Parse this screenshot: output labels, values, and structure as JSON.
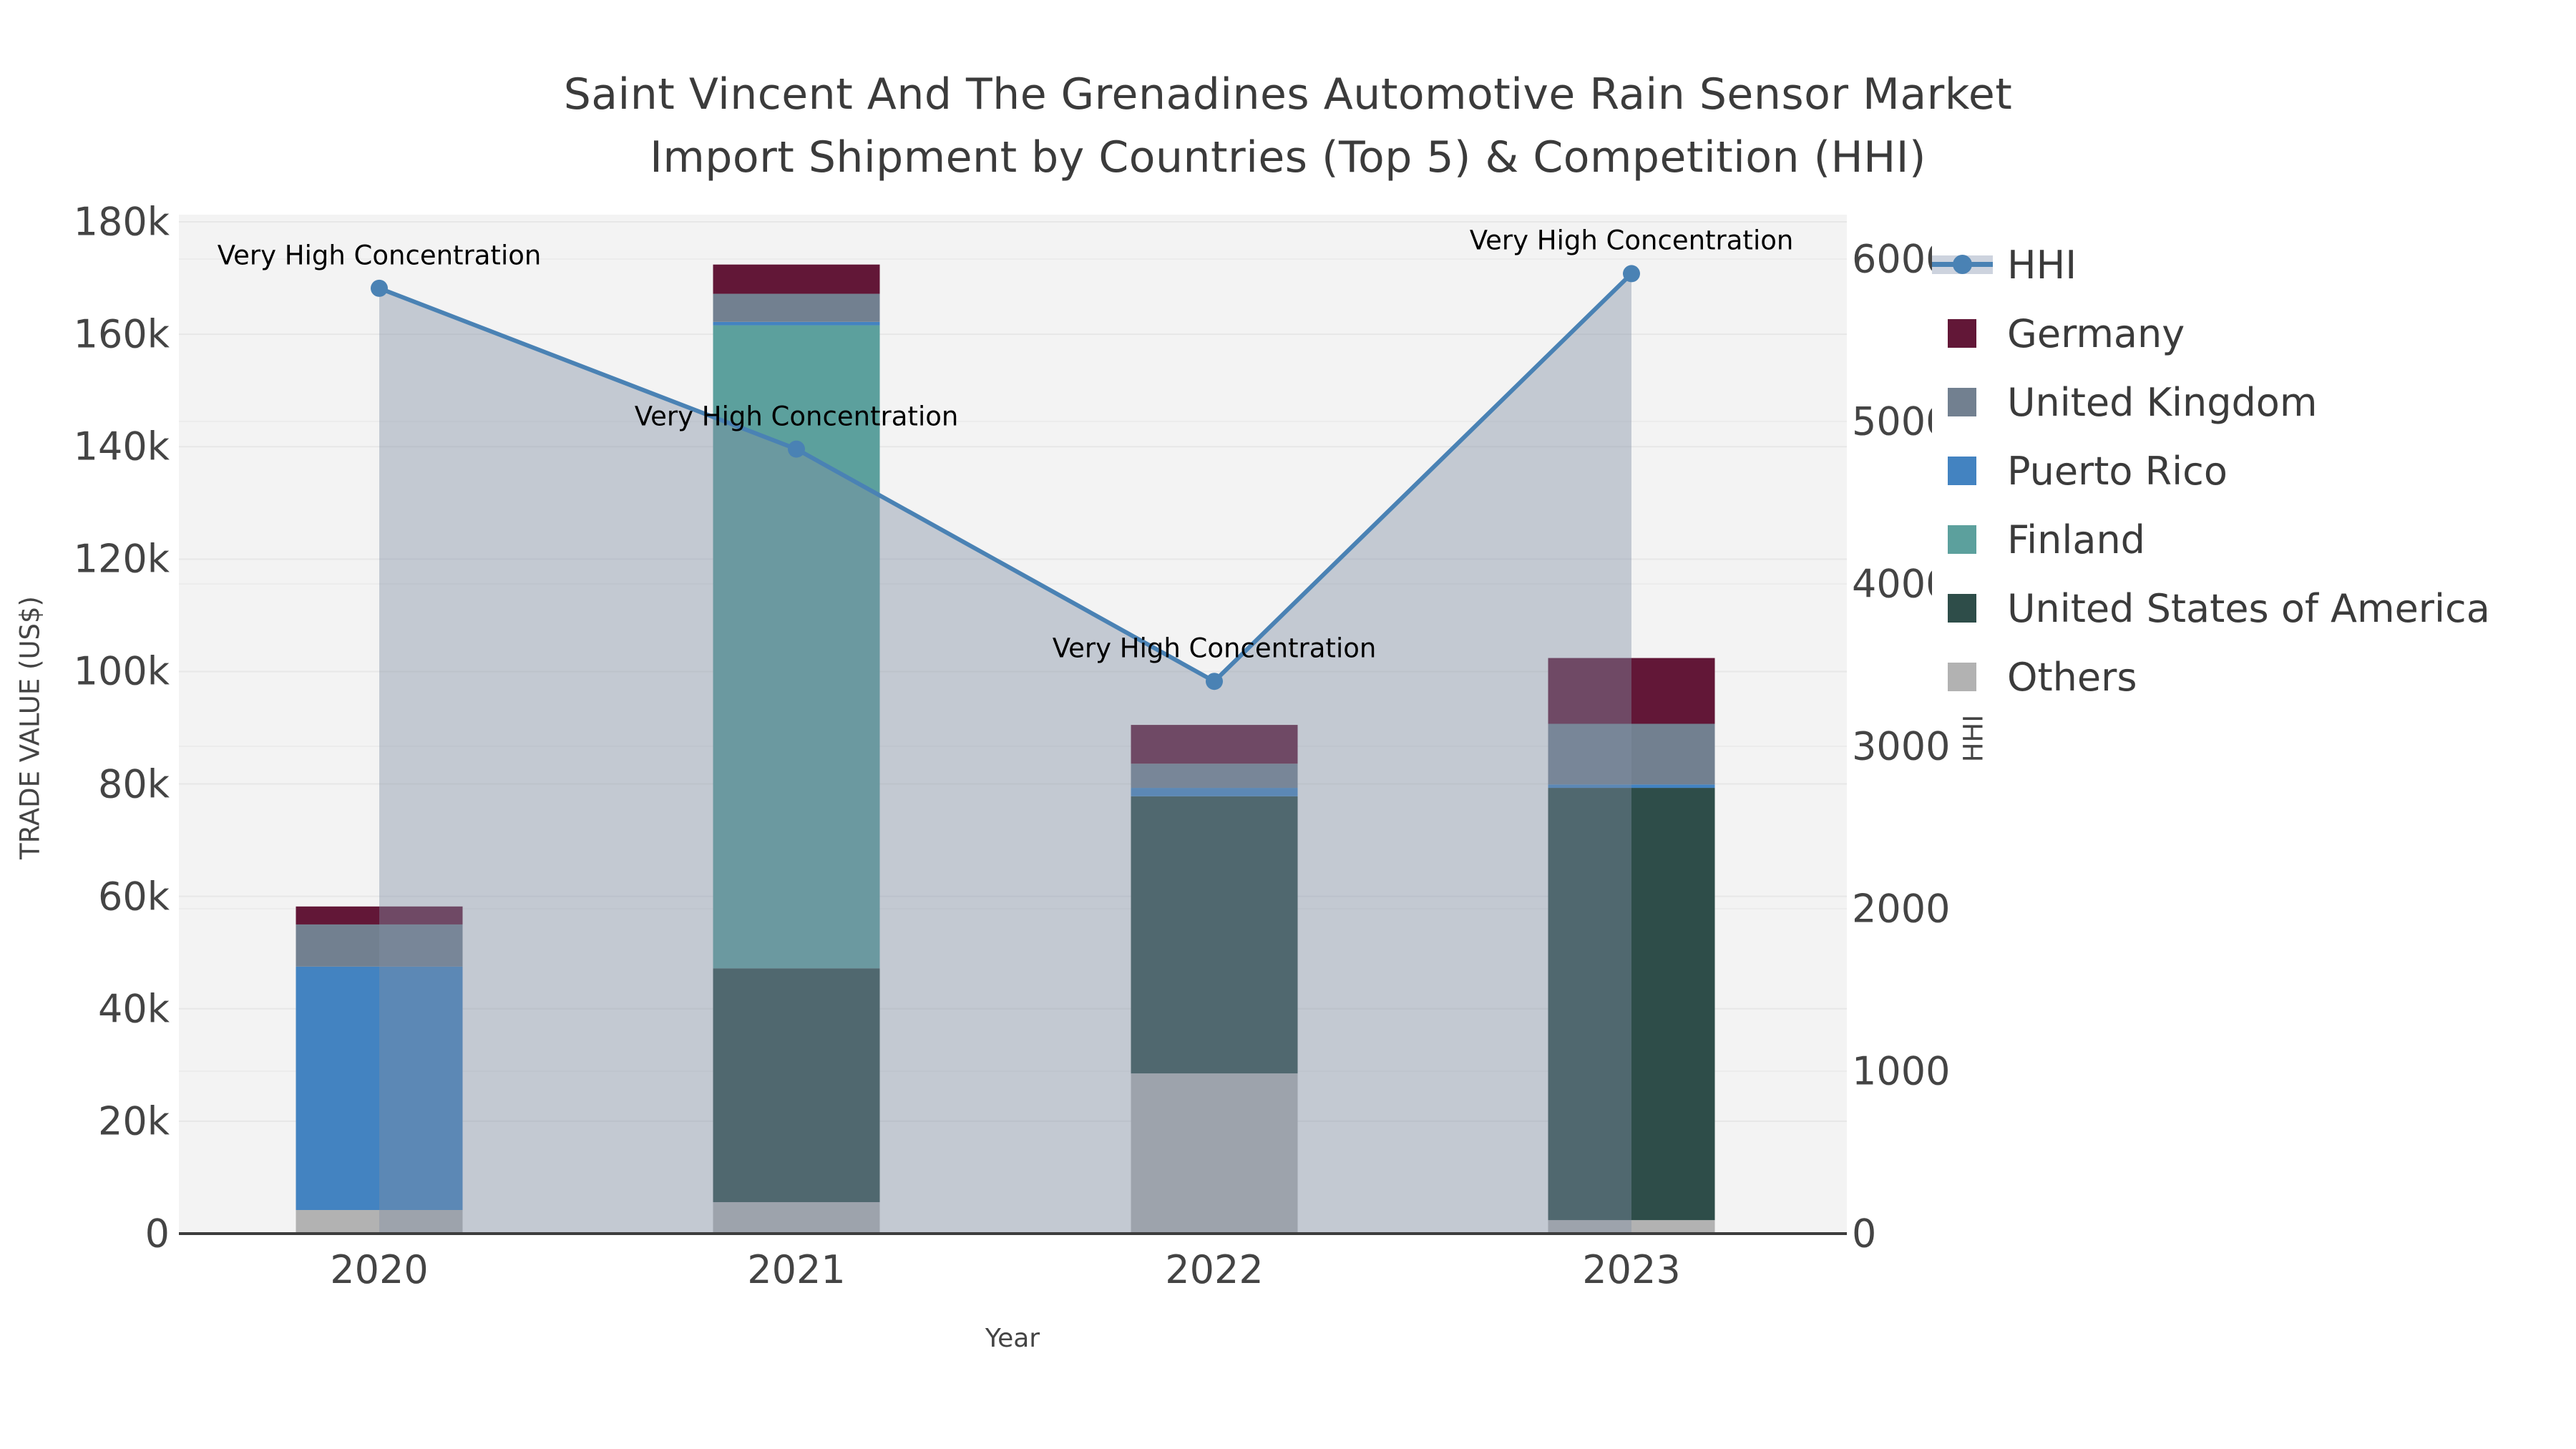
{
  "title": {
    "line1": "Saint Vincent And The Grenadines Automotive Rain Sensor Market",
    "line2": "Import Shipment by Countries (Top 5) & Competition (HHI)"
  },
  "axes": {
    "x": {
      "title": "Year",
      "categories": [
        "2020",
        "2021",
        "2022",
        "2023"
      ]
    },
    "y_left": {
      "title": "TRADE VALUE (US$)",
      "tick_labels": [
        "0",
        "20k",
        "40k",
        "60k",
        "80k",
        "100k",
        "120k",
        "140k",
        "160k",
        "180k"
      ],
      "tick_values": [
        0,
        20000,
        40000,
        60000,
        80000,
        100000,
        120000,
        140000,
        160000,
        180000
      ],
      "max": 180000
    },
    "y_right": {
      "title": "HHI",
      "tick_labels": [
        "0",
        "1000",
        "2000",
        "3000",
        "4000",
        "5000",
        "6000"
      ],
      "tick_values": [
        0,
        1000,
        2000,
        3000,
        4000,
        5000,
        6000
      ],
      "max": 6000
    }
  },
  "legend": {
    "items": [
      {
        "label": "HHI",
        "type": "line",
        "color": "#4a82b4",
        "band": "#cdd3de"
      },
      {
        "label": "Germany",
        "type": "swatch",
        "color": "#621737"
      },
      {
        "label": "United Kingdom",
        "type": "swatch",
        "color": "#728090"
      },
      {
        "label": "Puerto Rico",
        "type": "swatch",
        "color": "#4383c1"
      },
      {
        "label": "Finland",
        "type": "swatch",
        "color": "#5ca09d"
      },
      {
        "label": "United States of America",
        "type": "swatch",
        "color": "#2e4d49"
      },
      {
        "label": "Others",
        "type": "swatch",
        "color": "#b2b2b2"
      }
    ]
  },
  "chart_data": {
    "type": "bar",
    "subtype": "stacked-bar-with-line",
    "title": "Saint Vincent And The Grenadines Automotive Rain Sensor Market Import Shipment by Countries (Top 5) & Competition (HHI)",
    "xlabel": "Year",
    "ylabel_left": "TRADE VALUE (US$)",
    "ylabel_right": "HHI",
    "ylim_left": [
      0,
      180000
    ],
    "ylim_right": [
      0,
      6000
    ],
    "grid": true,
    "legend_position": "right",
    "categories": [
      "2020",
      "2021",
      "2022",
      "2023"
    ],
    "bar_series": [
      {
        "name": "Others",
        "color": "#b2b2b2",
        "values": [
          4200,
          5600,
          28500,
          2400
        ]
      },
      {
        "name": "United States of America",
        "color": "#2e4d49",
        "values": [
          0,
          41600,
          49300,
          76900
        ]
      },
      {
        "name": "Finland",
        "color": "#5ca09d",
        "values": [
          0,
          114400,
          0,
          0
        ]
      },
      {
        "name": "Puerto Rico",
        "color": "#4383c1",
        "values": [
          43300,
          600,
          1500,
          600
        ]
      },
      {
        "name": "United Kingdom",
        "color": "#728090",
        "values": [
          7500,
          5000,
          4300,
          10800
        ]
      },
      {
        "name": "Germany",
        "color": "#621737",
        "values": [
          3200,
          5200,
          6900,
          11700
        ]
      }
    ],
    "bar_totals": [
      58200,
      172400,
      90500,
      102400
    ],
    "line_series": {
      "name": "HHI",
      "color": "#4a82b4",
      "fill_color": "rgba(128,142,164,0.42)",
      "values": [
        5820,
        4830,
        3400,
        5910
      ]
    },
    "annotations": [
      {
        "text": "Very High Concentration",
        "category": "2020"
      },
      {
        "text": "Very High Concentration",
        "category": "2021"
      },
      {
        "text": "Very High Concentration",
        "category": "2022"
      },
      {
        "text": "Very High Concentration",
        "category": "2023"
      }
    ]
  }
}
